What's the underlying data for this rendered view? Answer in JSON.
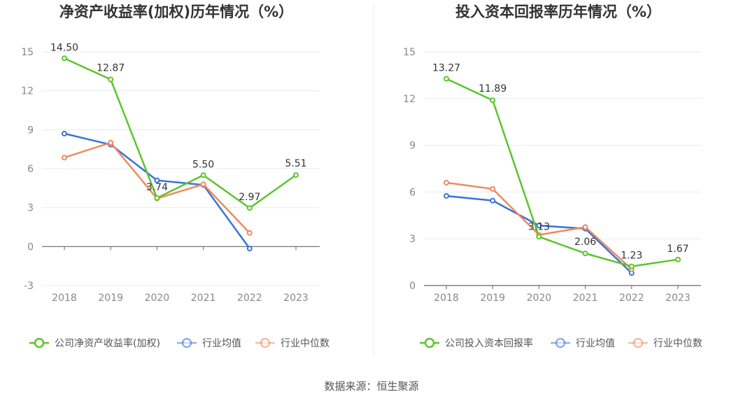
{
  "source_text": "数据来源：恒生聚源",
  "colors": {
    "company": "#5cc52a",
    "industry_avg": "#3a72d8",
    "industry_median": "#f08a5d",
    "grid": "#e8ebf0",
    "axis": "#666666"
  },
  "chart_data": [
    {
      "type": "line",
      "title": "净资产收益率(加权)历年情况（%）",
      "xlabel": "",
      "ylabel": "",
      "categories": [
        "2018",
        "2019",
        "2020",
        "2021",
        "2022",
        "2023"
      ],
      "ylim": [
        -3,
        15
      ],
      "yticks": [
        "-3",
        "0",
        "3",
        "6",
        "9",
        "12",
        "15"
      ],
      "grid": true,
      "legend_position": "bottom",
      "series": [
        {
          "name": "公司净资产收益率(加权)",
          "color": "#5cc52a",
          "values": [
            14.5,
            12.87,
            3.74,
            5.5,
            2.97,
            5.51
          ],
          "labels": [
            "14.50",
            "12.87",
            "3.74",
            "5.50",
            "2.97",
            "5.51"
          ]
        },
        {
          "name": "行业均值",
          "color": "#3a72d8",
          "values": [
            8.7,
            7.85,
            5.1,
            4.75,
            -0.15,
            null
          ]
        },
        {
          "name": "行业中位数",
          "color": "#f08a5d",
          "values": [
            6.85,
            8.0,
            3.7,
            4.8,
            1.05,
            null
          ]
        }
      ]
    },
    {
      "type": "line",
      "title": "投入资本回报率历年情况（%）",
      "xlabel": "",
      "ylabel": "",
      "categories": [
        "2018",
        "2019",
        "2020",
        "2021",
        "2022",
        "2023"
      ],
      "ylim": [
        0,
        15
      ],
      "yticks": [
        "0",
        "3",
        "6",
        "9",
        "12",
        "15"
      ],
      "grid": true,
      "legend_position": "bottom",
      "series": [
        {
          "name": "公司投入资本回报率",
          "color": "#5cc52a",
          "values": [
            13.27,
            11.89,
            3.13,
            2.06,
            1.23,
            1.67
          ],
          "labels": [
            "13.27",
            "11.89",
            "3.13",
            "2.06",
            "1.23",
            "1.67"
          ]
        },
        {
          "name": "行业均值",
          "color": "#3a72d8",
          "values": [
            5.75,
            5.45,
            3.85,
            3.65,
            0.8,
            null
          ]
        },
        {
          "name": "行业中位数",
          "color": "#f08a5d",
          "values": [
            6.6,
            6.2,
            3.25,
            3.75,
            1.05,
            null
          ]
        }
      ]
    }
  ]
}
